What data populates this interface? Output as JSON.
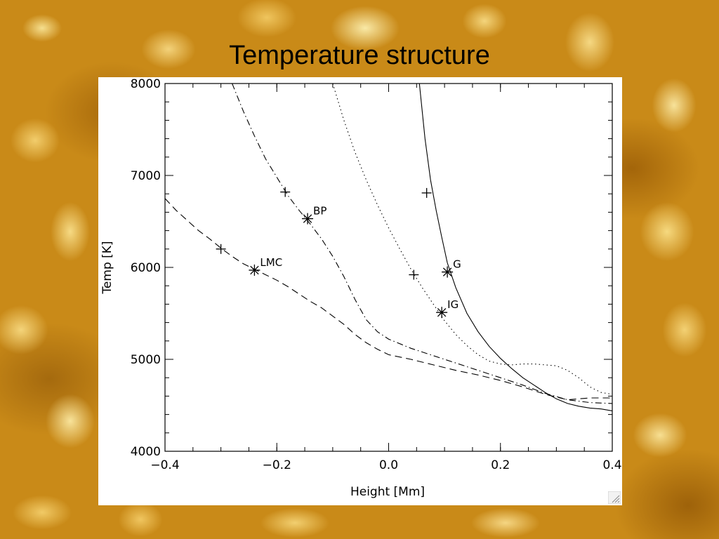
{
  "slide": {
    "title": "Temperature structure"
  },
  "colors": {
    "background": "#c98a18",
    "plot_background": "#ffffff",
    "ink": "#000000"
  },
  "chart_data": {
    "type": "line",
    "title": "",
    "xlabel": "Height [Mm]",
    "ylabel": "Temp [K]",
    "xlim": [
      -0.4,
      0.4
    ],
    "ylim": [
      4000,
      8000
    ],
    "xticks": [
      -0.4,
      -0.2,
      0.0,
      0.2,
      0.4
    ],
    "xtick_labels": [
      "−0.4",
      "−0.2",
      "0.0",
      "0.2",
      "0.4"
    ],
    "yticks": [
      4000,
      5000,
      6000,
      7000,
      8000
    ],
    "ytick_labels": [
      "4000",
      "5000",
      "6000",
      "7000",
      "8000"
    ],
    "grid": false,
    "series": [
      {
        "name": "G",
        "dash": "solid",
        "x": [
          0.055,
          0.065,
          0.075,
          0.085,
          0.095,
          0.105,
          0.12,
          0.14,
          0.16,
          0.18,
          0.2,
          0.22,
          0.24,
          0.26,
          0.28,
          0.3,
          0.32,
          0.34,
          0.36,
          0.38,
          0.4
        ],
        "y": [
          8000,
          7400,
          6950,
          6620,
          6330,
          6050,
          5780,
          5500,
          5300,
          5140,
          5010,
          4900,
          4800,
          4720,
          4640,
          4570,
          4520,
          4490,
          4470,
          4460,
          4440
        ]
      },
      {
        "name": "IG",
        "dash": "dotted",
        "x": [
          -0.1,
          -0.08,
          -0.06,
          -0.04,
          -0.02,
          0.0,
          0.02,
          0.04,
          0.06,
          0.08,
          0.1,
          0.12,
          0.14,
          0.16,
          0.18,
          0.2,
          0.22,
          0.24,
          0.26,
          0.28,
          0.3,
          0.32,
          0.34,
          0.36,
          0.38,
          0.4
        ],
        "y": [
          8000,
          7600,
          7250,
          6950,
          6680,
          6430,
          6200,
          5980,
          5780,
          5600,
          5420,
          5270,
          5150,
          5050,
          4980,
          4950,
          4940,
          4950,
          4950,
          4940,
          4930,
          4880,
          4800,
          4700,
          4640,
          4620
        ]
      },
      {
        "name": "BP",
        "dash": "dash-dot",
        "x": [
          -0.28,
          -0.26,
          -0.24,
          -0.22,
          -0.2,
          -0.18,
          -0.16,
          -0.14,
          -0.12,
          -0.1,
          -0.08,
          -0.06,
          -0.04,
          -0.02,
          0.0,
          0.04,
          0.08,
          0.12,
          0.16,
          0.2,
          0.24,
          0.28,
          0.32,
          0.36,
          0.4
        ],
        "y": [
          8000,
          7700,
          7430,
          7180,
          6980,
          6780,
          6620,
          6470,
          6310,
          6120,
          5900,
          5650,
          5430,
          5300,
          5220,
          5120,
          5040,
          4960,
          4880,
          4800,
          4720,
          4630,
          4560,
          4530,
          4520
        ]
      },
      {
        "name": "LMC",
        "dash": "dashed",
        "x": [
          -0.4,
          -0.38,
          -0.36,
          -0.34,
          -0.32,
          -0.3,
          -0.28,
          -0.26,
          -0.24,
          -0.22,
          -0.2,
          -0.18,
          -0.16,
          -0.14,
          -0.12,
          -0.1,
          -0.08,
          -0.06,
          -0.04,
          -0.02,
          0.0,
          0.04,
          0.08,
          0.12,
          0.16,
          0.2,
          0.24,
          0.28,
          0.32,
          0.36,
          0.4
        ],
        "y": [
          6750,
          6620,
          6510,
          6400,
          6310,
          6210,
          6120,
          6040,
          5980,
          5920,
          5860,
          5790,
          5710,
          5630,
          5560,
          5470,
          5380,
          5270,
          5180,
          5110,
          5050,
          5000,
          4940,
          4880,
          4830,
          4770,
          4700,
          4620,
          4560,
          4580,
          4580
        ]
      }
    ],
    "markers": [
      {
        "symbol": "asterisk",
        "x": 0.105,
        "y": 5950,
        "label": "G"
      },
      {
        "symbol": "asterisk",
        "x": 0.095,
        "y": 5510,
        "label": "IG"
      },
      {
        "symbol": "asterisk",
        "x": -0.145,
        "y": 6530,
        "label": "BP"
      },
      {
        "symbol": "asterisk",
        "x": -0.24,
        "y": 5970,
        "label": "LMC"
      },
      {
        "symbol": "plus",
        "x": 0.068,
        "y": 6810,
        "label": ""
      },
      {
        "symbol": "plus",
        "x": 0.045,
        "y": 5920,
        "label": ""
      },
      {
        "symbol": "plus",
        "x": -0.185,
        "y": 6820,
        "label": ""
      },
      {
        "symbol": "plus",
        "x": -0.3,
        "y": 6200,
        "label": ""
      }
    ]
  }
}
